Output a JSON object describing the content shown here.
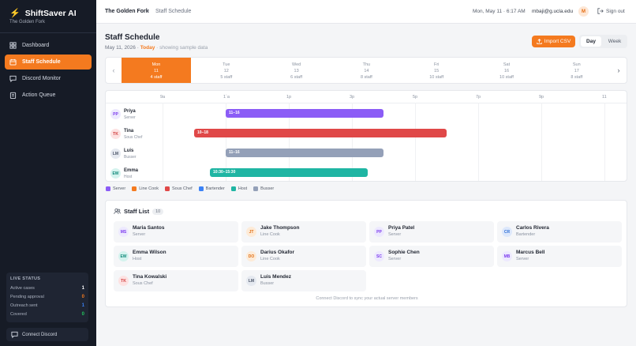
{
  "sidebar": {
    "brand": "ShiftSaver AI",
    "brand_sub": "The Golden Fork",
    "items": [
      {
        "label": "Dashboard",
        "icon": "grid-icon",
        "active": false
      },
      {
        "label": "Staff Schedule",
        "icon": "calendar-icon",
        "active": true
      },
      {
        "label": "Discord Monitor",
        "icon": "chat-icon",
        "active": false
      },
      {
        "label": "Action Queue",
        "icon": "clipboard-icon",
        "active": false
      }
    ],
    "live": {
      "title": "LIVE STATUS",
      "rows": [
        {
          "label": "Active cases",
          "value": "1",
          "color": "#ffffff"
        },
        {
          "label": "Pending approval",
          "value": "0",
          "color": "#f47a1f"
        },
        {
          "label": "Outreach sent",
          "value": "1",
          "color": "#3b82f6"
        },
        {
          "label": "Covered",
          "value": "0",
          "color": "#22c55e"
        }
      ]
    },
    "connect": "Connect Discord"
  },
  "header": {
    "crumb1": "The Golden Fork",
    "crumb_sep": "›",
    "crumb2": "Staff Schedule",
    "datetime": "Mon, May 11 · 6:17 AM",
    "email": "mbaji@g.ucla.edu",
    "avatar": "M",
    "signout": "Sign out"
  },
  "page": {
    "title": "Staff Schedule",
    "date": "May 11, 2026",
    "sep": " · ",
    "today": "Today",
    "sample": " · showing sample data",
    "import_label": "Import CSV",
    "view_day": "Day",
    "view_week": "Week"
  },
  "week": [
    {
      "dow": "Mon",
      "num": "11",
      "count": "4 staff",
      "active": true
    },
    {
      "dow": "Tue",
      "num": "12",
      "count": "5 staff",
      "active": false
    },
    {
      "dow": "Wed",
      "num": "13",
      "count": "6 staff",
      "active": false
    },
    {
      "dow": "Thu",
      "num": "14",
      "count": "8 staff",
      "active": false
    },
    {
      "dow": "Fri",
      "num": "15",
      "count": "10 staff",
      "active": false
    },
    {
      "dow": "Sat",
      "num": "16",
      "count": "10 staff",
      "active": false
    },
    {
      "dow": "Sun",
      "num": "17",
      "count": "8 staff",
      "active": false
    }
  ],
  "timeline": {
    "ticks": [
      "9a",
      "1´a",
      "1p",
      "3p",
      "5p",
      "7p",
      "9p",
      "11"
    ],
    "start_hour": 9,
    "end_hour": 23,
    "shifts": [
      {
        "initials": "PP",
        "name": "Priya",
        "role": "Server",
        "start": 11,
        "end": 16,
        "label": "11–16",
        "color": "#8b5cf6",
        "avatar_bg": "#ede9fe",
        "avatar_fg": "#7c3aed"
      },
      {
        "initials": "TK",
        "name": "Tina",
        "role": "Sous Chef",
        "start": 10,
        "end": 18,
        "label": "10–18",
        "color": "#e04848",
        "avatar_bg": "#fde2e2",
        "avatar_fg": "#d03b3b"
      },
      {
        "initials": "LM",
        "name": "Luis",
        "role": "Busser",
        "start": 11,
        "end": 16,
        "label": "11–16",
        "color": "#94a0b8",
        "avatar_bg": "#e5e9f0",
        "avatar_fg": "#4b5568"
      },
      {
        "initials": "EW",
        "name": "Emma",
        "role": "Host",
        "start": 10.5,
        "end": 15.5,
        "label": "10:30–15:30",
        "color": "#1fb5a3",
        "avatar_bg": "#d5f3ee",
        "avatar_fg": "#128a7b"
      }
    ]
  },
  "legend": [
    {
      "label": "Server",
      "color": "#8b5cf6"
    },
    {
      "label": "Line Cook",
      "color": "#f47a1f"
    },
    {
      "label": "Sous Chef",
      "color": "#e04848"
    },
    {
      "label": "Bartender",
      "color": "#3b82f6"
    },
    {
      "label": "Host",
      "color": "#1fb5a3"
    },
    {
      "label": "Busser",
      "color": "#94a0b8"
    }
  ],
  "staff_list": {
    "title": "Staff List",
    "count": "10",
    "members": [
      {
        "initials": "MS",
        "name": "Maria Santos",
        "role": "Server",
        "bg": "#ede9fe",
        "fg": "#7c3aed"
      },
      {
        "initials": "JT",
        "name": "Jake Thompson",
        "role": "Line Cook",
        "bg": "#fdebd8",
        "fg": "#e06d12"
      },
      {
        "initials": "PP",
        "name": "Priya Patel",
        "role": "Server",
        "bg": "#ede9fe",
        "fg": "#7c3aed"
      },
      {
        "initials": "CR",
        "name": "Carlos Rivera",
        "role": "Bartender",
        "bg": "#dde8fb",
        "fg": "#2f6fd6"
      },
      {
        "initials": "EW",
        "name": "Emma Wilson",
        "role": "Host",
        "bg": "#d5f3ee",
        "fg": "#128a7b"
      },
      {
        "initials": "DO",
        "name": "Darius Okafor",
        "role": "Line Cook",
        "bg": "#fdebd8",
        "fg": "#e06d12"
      },
      {
        "initials": "SC",
        "name": "Sophie Chen",
        "role": "Server",
        "bg": "#ede9fe",
        "fg": "#7c3aed"
      },
      {
        "initials": "MB",
        "name": "Marcus Bell",
        "role": "Server",
        "bg": "#ede9fe",
        "fg": "#7c3aed"
      },
      {
        "initials": "TK",
        "name": "Tina Kowalski",
        "role": "Sous Chef",
        "bg": "#fde2e2",
        "fg": "#d03b3b"
      },
      {
        "initials": "LM",
        "name": "Luis Mendez",
        "role": "Busser",
        "bg": "#e5e9f0",
        "fg": "#4b5568"
      }
    ],
    "footer": "Connect Discord to sync your actual server members"
  },
  "colors": {
    "accent": "#f47a1f",
    "sidebar_bg": "#161b26"
  }
}
